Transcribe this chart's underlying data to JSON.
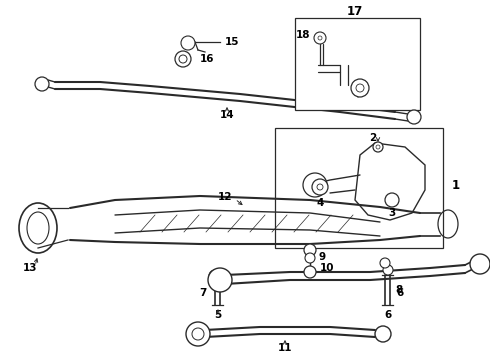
{
  "bg_color": "#ffffff",
  "line_color": "#2a2a2a",
  "label_color": "#000000",
  "fig_width": 4.9,
  "fig_height": 3.6,
  "dpi": 100,
  "font_size": 7.5
}
